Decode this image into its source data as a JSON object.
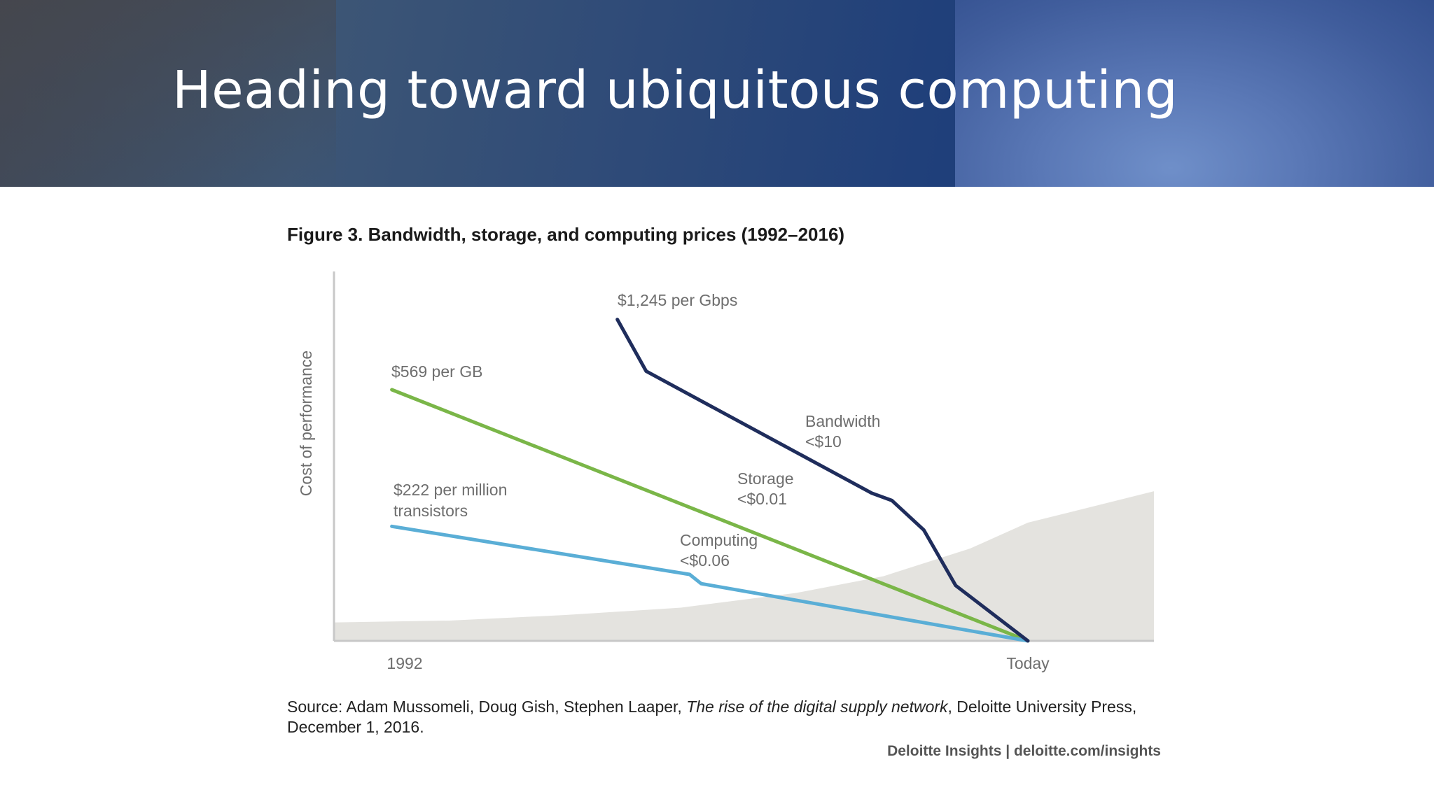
{
  "slide": {
    "title": "Heading toward ubiquitous computing"
  },
  "figure": {
    "title": "Figure 3. Bandwidth, storage, and computing prices (1992–2016)",
    "source_prefix": "Source: Adam Mussomeli, Doug Gish, Stephen Laaper, ",
    "source_italic": "The rise of the digital supply network",
    "source_suffix": ", Deloitte University Press, December 1, 2016.",
    "credit": "Deloitte Insights | deloitte.com/insights"
  },
  "chart_data": {
    "type": "line",
    "title": "Figure 3. Bandwidth, storage, and computing prices (1992–2016)",
    "ylabel": "Cost of performance",
    "xlabel": "",
    "x_tick_labels": [
      "1992",
      "Today"
    ],
    "xlim": [
      1992,
      2016
    ],
    "ylim": [
      0,
      1
    ],
    "grid": false,
    "colors": {
      "Bandwidth": "#1f2d5c",
      "Storage": "#7ab648",
      "Computing": "#5aaed6",
      "area": "#e4e3df",
      "axis": "#c8c8c8"
    },
    "series": [
      {
        "name": "Bandwidth",
        "start_label": "$1,245 per Gbps",
        "end_label": "Bandwidth",
        "end_value": "<$10",
        "points": [
          [
            2001.8,
            0.87
          ],
          [
            2002.8,
            0.73
          ],
          [
            2010.6,
            0.4
          ],
          [
            2011.3,
            0.38
          ],
          [
            2012.4,
            0.3
          ],
          [
            2013.5,
            0.15
          ],
          [
            2016,
            0.0
          ]
        ]
      },
      {
        "name": "Storage",
        "start_label": "$569 per GB",
        "end_label": "Storage",
        "end_value": "<$0.01",
        "points": [
          [
            1994,
            0.68
          ],
          [
            2016,
            0.0
          ]
        ]
      },
      {
        "name": "Computing",
        "start_label": "$222 per million transistors",
        "end_label": "Computing",
        "end_value": "<$0.06",
        "points": [
          [
            1994,
            0.31
          ],
          [
            2004.3,
            0.18
          ],
          [
            2004.7,
            0.155
          ],
          [
            2016,
            0.0
          ]
        ]
      }
    ],
    "background_area": {
      "description": "rising shaded curve",
      "points": [
        [
          1992,
          0.05
        ],
        [
          1996,
          0.055
        ],
        [
          2000,
          0.07
        ],
        [
          2004,
          0.09
        ],
        [
          2008,
          0.13
        ],
        [
          2011,
          0.175
        ],
        [
          2014,
          0.25
        ],
        [
          2016,
          0.32
        ],
        [
          2020.5,
          0.405
        ]
      ]
    }
  }
}
